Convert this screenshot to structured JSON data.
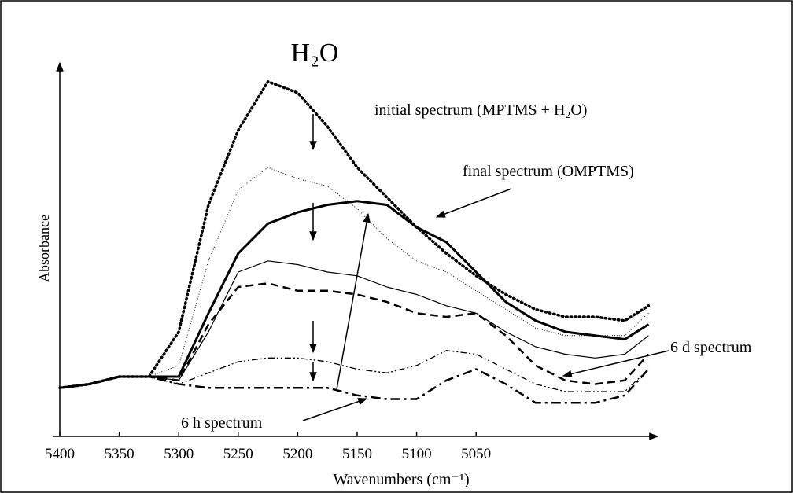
{
  "chart_data": {
    "type": "line",
    "annotations": [
      "H₂O",
      "initial spectrum (MPTMS + H₂O)",
      "final spectrum (OMPTMS)",
      "6 d spectrum",
      "6 h spectrum"
    ],
    "x_label": "Wavenumbers (cm⁻¹)",
    "y_label": "Absorbance",
    "x": [
      5400,
      5375,
      5350,
      5325,
      5300,
      5275,
      5250,
      5225,
      5200,
      5175,
      5150,
      5125,
      5100,
      5075,
      5050,
      5025,
      5000,
      4975,
      4950,
      4925,
      4905
    ],
    "xlim": [
      5400,
      4898
    ],
    "xticks": [
      5400,
      5350,
      5300,
      5250,
      5200,
      5150,
      5100,
      5050
    ],
    "ylim": [
      0,
      1
    ],
    "series": [
      {
        "name": "initial spectrum (MPTMS + H₂O)",
        "color": "#000",
        "linestyle": "dotted-thick",
        "values": [
          0.13,
          0.14,
          0.16,
          0.16,
          0.28,
          0.62,
          0.82,
          0.95,
          0.92,
          0.83,
          0.72,
          0.64,
          0.56,
          0.49,
          0.43,
          0.38,
          0.34,
          0.32,
          0.32,
          0.31,
          0.35
        ]
      },
      {
        "color": "#000",
        "linestyle": "dotted-thin",
        "values": [
          0.13,
          0.14,
          0.16,
          0.16,
          0.19,
          0.47,
          0.66,
          0.72,
          0.69,
          0.67,
          0.61,
          0.53,
          0.47,
          0.44,
          0.39,
          0.34,
          0.29,
          0.27,
          0.27,
          0.27,
          0.33
        ]
      },
      {
        "name": "final spectrum (OMPTMS)",
        "color": "#000",
        "linestyle": "solid-thick",
        "values": [
          0.13,
          0.14,
          0.16,
          0.16,
          0.16,
          0.33,
          0.49,
          0.57,
          0.6,
          0.62,
          0.63,
          0.62,
          0.56,
          0.52,
          0.44,
          0.36,
          0.31,
          0.28,
          0.27,
          0.26,
          0.3
        ]
      },
      {
        "color": "#000",
        "linestyle": "solid-thin",
        "values": [
          0.13,
          0.14,
          0.16,
          0.16,
          0.15,
          0.28,
          0.44,
          0.47,
          0.46,
          0.44,
          0.43,
          0.4,
          0.38,
          0.35,
          0.33,
          0.28,
          0.24,
          0.22,
          0.21,
          0.22,
          0.27
        ]
      },
      {
        "name": "6 d spectrum",
        "color": "#000",
        "linestyle": "dashed",
        "values": [
          0.13,
          0.14,
          0.16,
          0.16,
          0.15,
          0.3,
          0.4,
          0.41,
          0.39,
          0.39,
          0.38,
          0.36,
          0.33,
          0.32,
          0.33,
          0.27,
          0.19,
          0.15,
          0.14,
          0.15,
          0.22
        ]
      },
      {
        "color": "#000",
        "linestyle": "dashdotdot",
        "values": [
          0.13,
          0.14,
          0.16,
          0.16,
          0.14,
          0.17,
          0.2,
          0.21,
          0.21,
          0.2,
          0.18,
          0.17,
          0.19,
          0.23,
          0.22,
          0.18,
          0.14,
          0.12,
          0.12,
          0.12,
          0.18
        ]
      },
      {
        "name": "6 h spectrum",
        "color": "#000",
        "linestyle": "dashdot-thick",
        "values": [
          0.13,
          0.14,
          0.16,
          0.16,
          0.14,
          0.13,
          0.13,
          0.13,
          0.13,
          0.13,
          0.11,
          0.1,
          0.1,
          0.15,
          0.18,
          0.14,
          0.09,
          0.09,
          0.09,
          0.11,
          0.18
        ]
      }
    ]
  }
}
